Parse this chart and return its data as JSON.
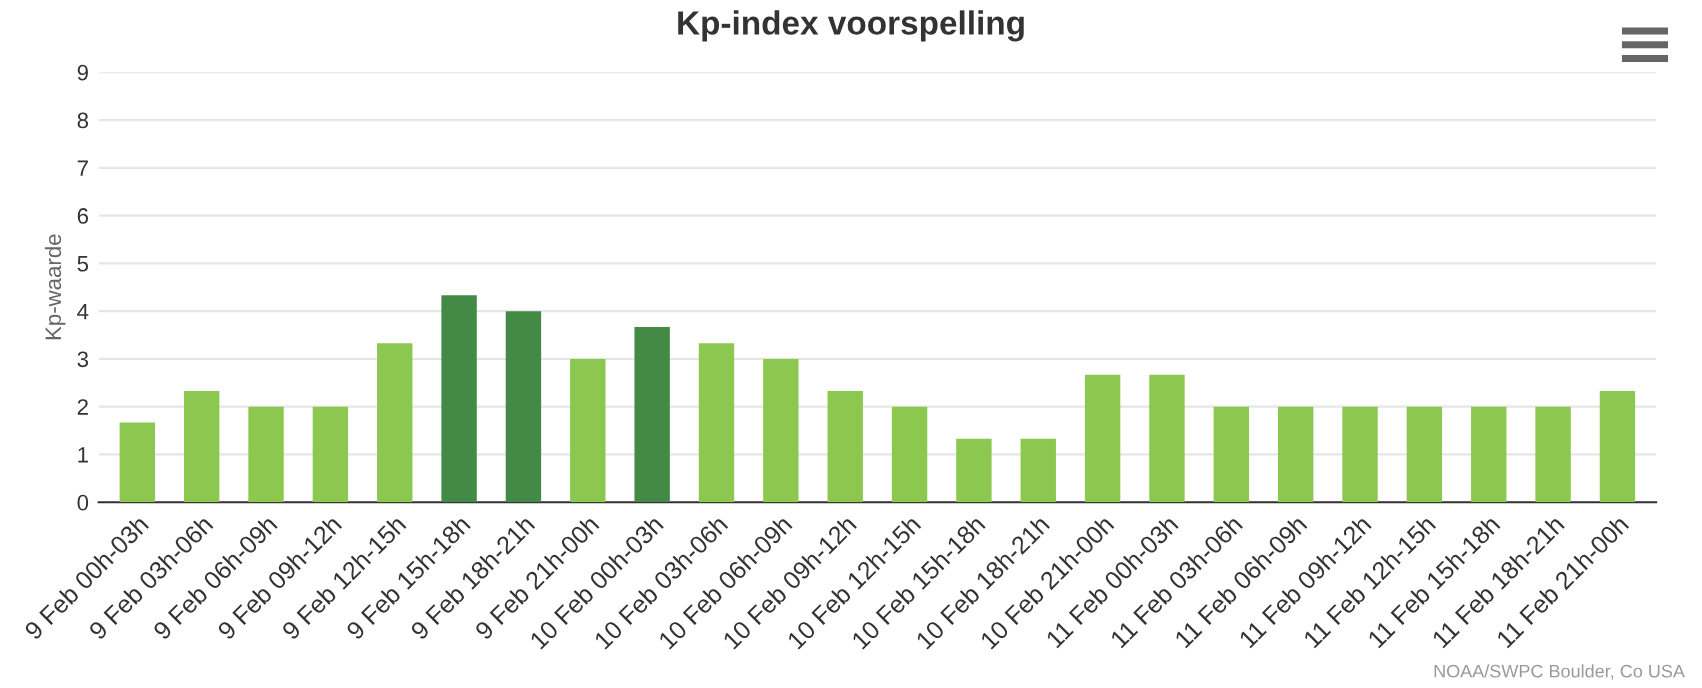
{
  "chart_data": {
    "type": "bar",
    "title": "Kp-index voorspelling",
    "ylabel": "Kp-waarde",
    "categories": [
      "9 Feb 00h-03h",
      "9 Feb 03h-06h",
      "9 Feb 06h-09h",
      "9 Feb 09h-12h",
      "9 Feb 12h-15h",
      "9 Feb 15h-18h",
      "9 Feb 18h-21h",
      "9 Feb 21h-00h",
      "10 Feb 00h-03h",
      "10 Feb 03h-06h",
      "10 Feb 06h-09h",
      "10 Feb 09h-12h",
      "10 Feb 12h-15h",
      "10 Feb 15h-18h",
      "10 Feb 18h-21h",
      "10 Feb 21h-00h",
      "11 Feb 00h-03h",
      "11 Feb 03h-06h",
      "11 Feb 06h-09h",
      "11 Feb 09h-12h",
      "11 Feb 12h-15h",
      "11 Feb 15h-18h",
      "11 Feb 18h-21h",
      "11 Feb 21h-00h"
    ],
    "values": [
      1.67,
      2.33,
      2.0,
      2.0,
      3.33,
      4.33,
      4.0,
      3.0,
      3.67,
      3.33,
      3.0,
      2.33,
      2.0,
      1.33,
      1.33,
      2.67,
      2.67,
      2.0,
      2.0,
      2.0,
      2.0,
      2.0,
      2.0,
      2.33
    ],
    "colors": [
      "#8cc74f",
      "#8cc74f",
      "#8cc74f",
      "#8cc74f",
      "#8cc74f",
      "#448a47",
      "#448a47",
      "#8cc74f",
      "#448a47",
      "#8cc74f",
      "#8cc74f",
      "#8cc74f",
      "#8cc74f",
      "#8cc74f",
      "#8cc74f",
      "#8cc74f",
      "#8cc74f",
      "#8cc74f",
      "#8cc74f",
      "#8cc74f",
      "#8cc74f",
      "#8cc74f",
      "#8cc74f",
      "#8cc74f"
    ],
    "ylim": [
      0,
      9
    ],
    "yticks": [
      0,
      1,
      2,
      3,
      4,
      5,
      6,
      7,
      8,
      9
    ],
    "grid": "y",
    "annotations": [
      "NOAA/SWPC Boulder, Co USA"
    ]
  }
}
